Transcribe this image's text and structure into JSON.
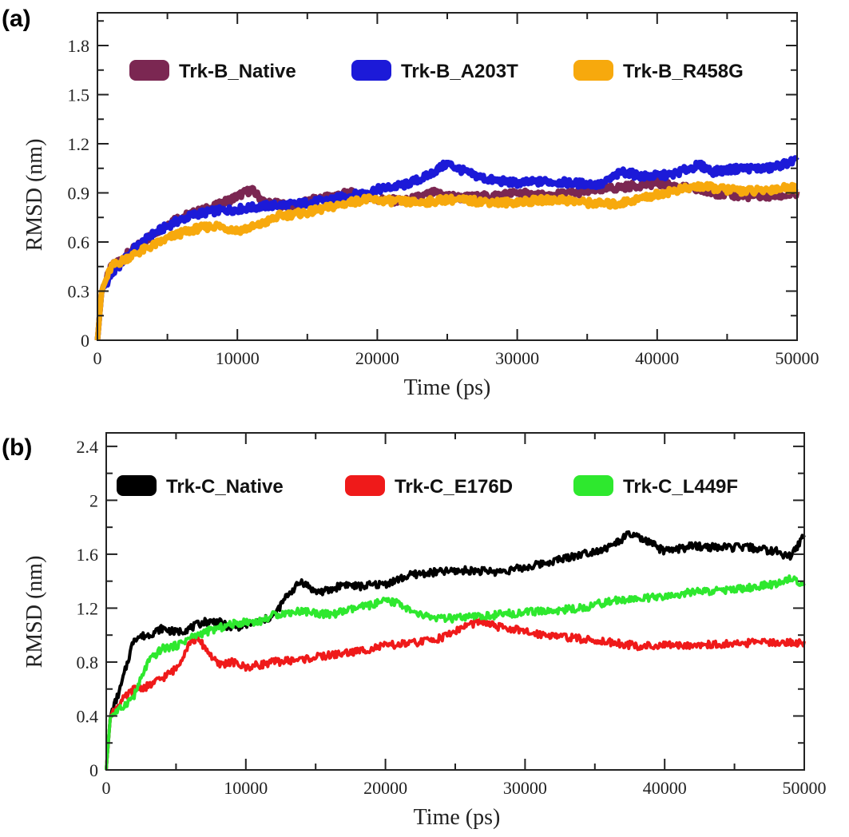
{
  "chart_data": [
    {
      "type": "line",
      "panel_label": "(a)",
      "xlabel": "Time (ps)",
      "ylabel": "RMSD (nm)",
      "xlim": [
        0,
        50000
      ],
      "ylim": [
        0,
        2.0
      ],
      "xticks": [
        0,
        10000,
        20000,
        30000,
        40000,
        50000
      ],
      "xtick_labels": [
        "0",
        "10000",
        "20000",
        "30000",
        "40000",
        "50000"
      ],
      "yticks": [
        0,
        0.3,
        0.6,
        0.9,
        1.2,
        1.5,
        1.8
      ],
      "ytick_labels": [
        "0",
        "0.3",
        "0.6",
        "0.9",
        "1.2",
        "1.5",
        "1.8"
      ],
      "legend_position": "top",
      "series": [
        {
          "name": "Trk-B_Native",
          "color": "#7b2752",
          "x": [
            0,
            300,
            1000,
            2500,
            4000,
            5500,
            7000,
            8500,
            10000,
            11000,
            12000,
            14000,
            16000,
            18000,
            20000,
            22000,
            24000,
            26000,
            28000,
            30000,
            32000,
            34000,
            36000,
            38000,
            40000,
            42000,
            44000,
            46000,
            48000,
            50000
          ],
          "y": [
            0.0,
            0.3,
            0.45,
            0.55,
            0.65,
            0.74,
            0.78,
            0.82,
            0.88,
            0.92,
            0.84,
            0.82,
            0.87,
            0.9,
            0.86,
            0.85,
            0.9,
            0.87,
            0.88,
            0.9,
            0.88,
            0.9,
            0.92,
            0.94,
            0.96,
            0.93,
            0.9,
            0.88,
            0.88,
            0.89
          ]
        },
        {
          "name": "Trk-B_A203T",
          "color": "#1c1ad8",
          "x": [
            0,
            300,
            1000,
            2500,
            4000,
            5500,
            7000,
            8500,
            10000,
            12000,
            14000,
            16000,
            18000,
            20000,
            22000,
            23500,
            25000,
            26500,
            28000,
            30000,
            32000,
            34000,
            36000,
            37500,
            39000,
            41000,
            43000,
            44000,
            46000,
            48000,
            50000
          ],
          "y": [
            0.0,
            0.3,
            0.4,
            0.55,
            0.65,
            0.72,
            0.77,
            0.79,
            0.8,
            0.82,
            0.83,
            0.85,
            0.88,
            0.92,
            0.95,
            1.0,
            1.08,
            1.02,
            0.98,
            0.96,
            0.97,
            0.96,
            0.95,
            1.03,
            1.0,
            1.01,
            1.07,
            1.03,
            1.05,
            1.05,
            1.1
          ]
        },
        {
          "name": "Trk-B_R458G",
          "color": "#f7a90d",
          "x": [
            0,
            300,
            1000,
            2500,
            4000,
            5500,
            7000,
            8500,
            10000,
            11500,
            13000,
            15000,
            17000,
            19000,
            21000,
            23000,
            25000,
            27000,
            29000,
            31000,
            33000,
            35000,
            37000,
            39000,
            41000,
            43000,
            45000,
            47000,
            49000,
            50000
          ],
          "y": [
            0.0,
            0.3,
            0.45,
            0.52,
            0.58,
            0.64,
            0.68,
            0.7,
            0.67,
            0.7,
            0.76,
            0.78,
            0.82,
            0.86,
            0.85,
            0.84,
            0.86,
            0.85,
            0.84,
            0.85,
            0.86,
            0.84,
            0.83,
            0.87,
            0.91,
            0.94,
            0.92,
            0.91,
            0.93,
            0.93
          ]
        }
      ]
    },
    {
      "type": "line",
      "panel_label": "(b)",
      "xlabel": "Time (ps)",
      "ylabel": "RMSD (nm)",
      "xlim": [
        0,
        50000
      ],
      "ylim": [
        0,
        2.5
      ],
      "xticks": [
        0,
        10000,
        20000,
        30000,
        40000,
        50000
      ],
      "xtick_labels": [
        "0",
        "10000",
        "20000",
        "30000",
        "40000",
        "50000"
      ],
      "yticks": [
        0,
        0.4,
        0.8,
        1.2,
        1.6,
        2.0,
        2.4
      ],
      "ytick_labels": [
        "0",
        "0.4",
        "0.8",
        "1.2",
        "1.6",
        "2",
        "2.4"
      ],
      "legend_position": "top",
      "series": [
        {
          "name": "Trk-C_Native",
          "color": "#000000",
          "x": [
            0,
            300,
            1000,
            2000,
            3000,
            4000,
            5000,
            6000,
            7000,
            8000,
            9000,
            10000,
            11000,
            12000,
            13000,
            14000,
            15000,
            16000,
            17000,
            18000,
            20000,
            22000,
            24000,
            26000,
            28000,
            30000,
            32000,
            34000,
            36000,
            37500,
            39000,
            40000,
            42000,
            44000,
            46000,
            48000,
            49000,
            50000
          ],
          "y": [
            0.0,
            0.4,
            0.6,
            0.98,
            1.0,
            1.05,
            1.02,
            1.05,
            1.1,
            1.1,
            1.05,
            1.08,
            1.1,
            1.14,
            1.3,
            1.4,
            1.32,
            1.33,
            1.38,
            1.36,
            1.38,
            1.45,
            1.47,
            1.48,
            1.47,
            1.5,
            1.55,
            1.6,
            1.65,
            1.75,
            1.68,
            1.62,
            1.66,
            1.65,
            1.65,
            1.62,
            1.58,
            1.74
          ]
        },
        {
          "name": "Trk-C_E176D",
          "color": "#ef1a1a",
          "x": [
            0,
            300,
            1000,
            2000,
            3000,
            4000,
            5000,
            6000,
            6500,
            7000,
            8000,
            9000,
            10000,
            11000,
            12000,
            14000,
            16000,
            18000,
            20000,
            22000,
            24000,
            25000,
            26000,
            27000,
            28000,
            29000,
            30000,
            32000,
            34000,
            36000,
            38000,
            40000,
            42000,
            44000,
            46000,
            48000,
            50000
          ],
          "y": [
            0.0,
            0.4,
            0.5,
            0.6,
            0.62,
            0.68,
            0.75,
            0.95,
            0.97,
            0.92,
            0.78,
            0.8,
            0.76,
            0.78,
            0.8,
            0.82,
            0.85,
            0.88,
            0.92,
            0.94,
            0.98,
            1.03,
            1.08,
            1.1,
            1.06,
            1.05,
            1.02,
            1.0,
            0.97,
            0.95,
            0.92,
            0.92,
            0.93,
            0.93,
            0.94,
            0.95,
            0.94
          ]
        },
        {
          "name": "Trk-C_L449F",
          "color": "#2ee82e",
          "x": [
            0,
            300,
            1000,
            2000,
            3000,
            4000,
            5000,
            6000,
            7000,
            8000,
            9000,
            10000,
            11000,
            12000,
            14000,
            16000,
            18000,
            20000,
            21000,
            22000,
            24000,
            26000,
            28000,
            30000,
            32000,
            34000,
            36000,
            38000,
            40000,
            42000,
            44000,
            46000,
            48000,
            49000,
            50000
          ],
          "y": [
            0.0,
            0.4,
            0.45,
            0.55,
            0.8,
            0.9,
            0.92,
            0.98,
            1.02,
            1.05,
            1.08,
            1.1,
            1.1,
            1.15,
            1.18,
            1.15,
            1.2,
            1.25,
            1.24,
            1.16,
            1.12,
            1.13,
            1.15,
            1.17,
            1.18,
            1.2,
            1.25,
            1.27,
            1.28,
            1.32,
            1.33,
            1.35,
            1.38,
            1.42,
            1.38
          ]
        }
      ]
    }
  ]
}
